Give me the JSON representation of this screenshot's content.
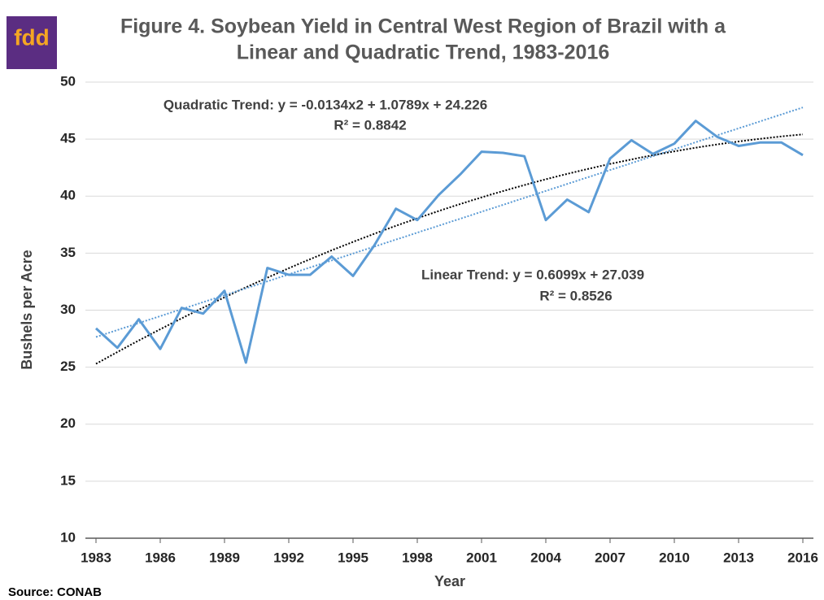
{
  "logo": "fdd",
  "source": "Source: CONAB",
  "chart_data": {
    "type": "line",
    "title": [
      "Figure 4. Soybean Yield in Central West Region of Brazil with a",
      "Linear and Quadratic Trend, 1983-2016"
    ],
    "x_label": "Year",
    "y_label": "Bushels per Acre",
    "annotations": [
      "Quadratic Trend: y = -0.0134x2 + 1.0789x + 24.226",
      "R² = 0.8842",
      "Linear Trend:  y = 0.6099x + 27.039",
      "R² = 0.8526"
    ],
    "x": [
      1983,
      1984,
      1985,
      1986,
      1987,
      1988,
      1989,
      1990,
      1991,
      1992,
      1993,
      1994,
      1995,
      1996,
      1997,
      1998,
      1999,
      2000,
      2001,
      2002,
      2003,
      2004,
      2005,
      2006,
      2007,
      2008,
      2009,
      2010,
      2011,
      2012,
      2013,
      2014,
      2015,
      2016
    ],
    "series": [
      {
        "name": "Yield",
        "color": "#5b9bd5",
        "values": [
          28.4,
          26.7,
          29.2,
          26.6,
          30.2,
          29.7,
          31.7,
          25.4,
          33.7,
          33.1,
          33.1,
          34.7,
          33.0,
          35.7,
          38.9,
          37.9,
          40.1,
          41.9,
          43.9,
          43.8,
          43.5,
          37.9,
          39.7,
          38.6,
          43.3,
          44.9,
          43.7,
          44.6,
          46.6,
          45.2,
          44.4,
          44.7,
          44.7,
          43.6
        ]
      }
    ],
    "trendlines": [
      {
        "kind": "quadratic",
        "color": "#000000",
        "coefficients": [
          24.226,
          1.0789,
          -0.0134
        ]
      },
      {
        "kind": "linear",
        "color": "#5b9bd5",
        "coefficients": [
          27.039,
          0.6099
        ]
      }
    ],
    "xlim": [
      1983,
      2016
    ],
    "xticks": [
      1983,
      1986,
      1989,
      1992,
      1995,
      1998,
      2001,
      2004,
      2007,
      2010,
      2013,
      2016
    ],
    "ylim": [
      10,
      50
    ],
    "yticks": [
      10,
      15,
      20,
      25,
      30,
      35,
      40,
      45,
      50
    ],
    "grid": true
  }
}
